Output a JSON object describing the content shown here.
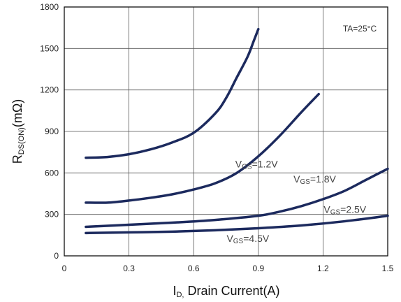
{
  "chart_data": {
    "type": "line",
    "title": "",
    "xlabel": {
      "sym": "I",
      "sub": "D,",
      "rest": " Drain Current(A)"
    },
    "ylabel": {
      "sym": "R",
      "sub": "DS(ON)",
      "rest": "(mΩ)"
    },
    "xlim": [
      0,
      1.5
    ],
    "ylim": [
      0,
      1800
    ],
    "x_ticks": [
      "0",
      "0.3",
      "0.6",
      "0.9",
      "1.2",
      "1.5"
    ],
    "y_ticks": [
      "0",
      "300",
      "600",
      "900",
      "1200",
      "1500",
      "1800"
    ],
    "grid": true,
    "annotation": "TA=25°C",
    "series": [
      {
        "name": "VGS=1.2V",
        "label": {
          "v": "V",
          "sub": "GS",
          "val": "=1.2V"
        },
        "x": [
          0.1,
          0.2,
          0.3,
          0.4,
          0.5,
          0.6,
          0.7,
          0.75,
          0.8,
          0.85,
          0.88,
          0.9
        ],
        "y": [
          710,
          715,
          735,
          770,
          820,
          890,
          1030,
          1140,
          1290,
          1440,
          1560,
          1640
        ]
      },
      {
        "name": "VGS=1.8V",
        "label": {
          "v": "V",
          "sub": "GS",
          "val": "=1.8V"
        },
        "x": [
          0.1,
          0.2,
          0.3,
          0.4,
          0.5,
          0.6,
          0.7,
          0.8,
          0.9,
          1.0,
          1.1,
          1.18
        ],
        "y": [
          385,
          385,
          400,
          420,
          445,
          480,
          525,
          600,
          720,
          870,
          1040,
          1170
        ]
      },
      {
        "name": "VGS=2.5V",
        "label": {
          "v": "V",
          "sub": "GS",
          "val": "=2.5V"
        },
        "x": [
          0.1,
          0.3,
          0.5,
          0.7,
          0.9,
          1.0,
          1.1,
          1.2,
          1.3,
          1.4,
          1.5
        ],
        "y": [
          210,
          225,
          240,
          260,
          290,
          320,
          360,
          410,
          470,
          550,
          630
        ]
      },
      {
        "name": "VGS=4.5V",
        "label": {
          "v": "V",
          "sub": "GS",
          "val": "=4.5V"
        },
        "x": [
          0.1,
          0.3,
          0.5,
          0.7,
          0.9,
          1.1,
          1.3,
          1.5
        ],
        "y": [
          165,
          170,
          175,
          185,
          200,
          220,
          250,
          290
        ]
      }
    ],
    "line_color": "#1c2a5e"
  }
}
